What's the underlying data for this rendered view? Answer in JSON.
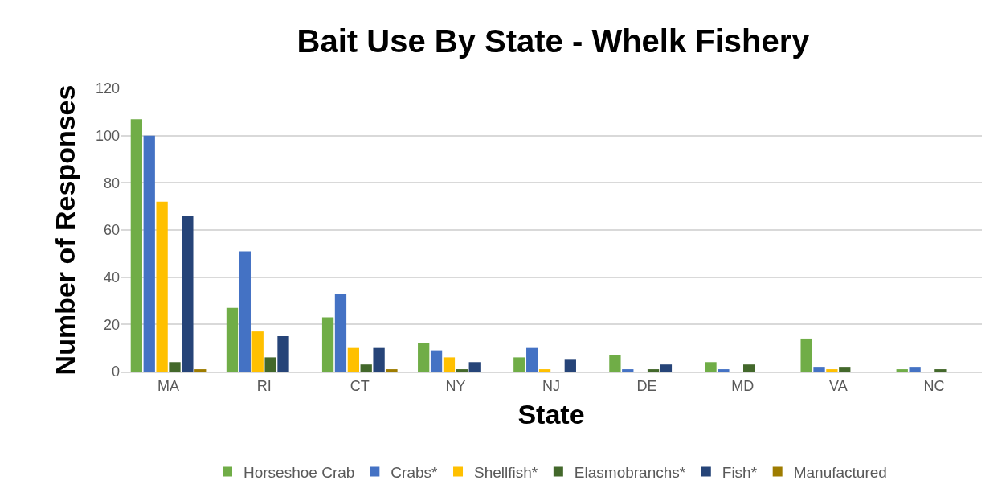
{
  "chart_data": {
    "type": "bar",
    "title": "Bait Use By State - Whelk Fishery",
    "xlabel": "State",
    "ylabel": "Number of Responses",
    "categories": [
      "MA",
      "RI",
      "CT",
      "NY",
      "NJ",
      "DE",
      "MD",
      "VA",
      "NC"
    ],
    "series": [
      {
        "name": "Horseshoe Crab",
        "color": "#70ad47",
        "values": [
          107,
          27,
          23,
          12,
          6,
          7,
          4,
          14,
          1
        ]
      },
      {
        "name": "Crabs*",
        "color": "#4472c4",
        "values": [
          100,
          51,
          33,
          9,
          10,
          1,
          1,
          2,
          2
        ]
      },
      {
        "name": "Shellfish*",
        "color": "#ffc000",
        "values": [
          72,
          17,
          10,
          6,
          1,
          0,
          0,
          1,
          0
        ]
      },
      {
        "name": "Elasmobranchs*",
        "color": "#43682b",
        "values": [
          4,
          6,
          3,
          1,
          0,
          1,
          3,
          2,
          1
        ]
      },
      {
        "name": "Fish*",
        "color": "#264478",
        "values": [
          66,
          15,
          10,
          4,
          5,
          3,
          0,
          0,
          0
        ]
      },
      {
        "name": "Manufactured",
        "color": "#9e7c00",
        "values": [
          1,
          0,
          1,
          0,
          0,
          0,
          0,
          0,
          0
        ]
      }
    ],
    "ylim": [
      0,
      120
    ],
    "yticks": [
      0,
      20,
      40,
      60,
      80,
      100,
      120
    ],
    "grid": "y",
    "legend": "bottom"
  }
}
